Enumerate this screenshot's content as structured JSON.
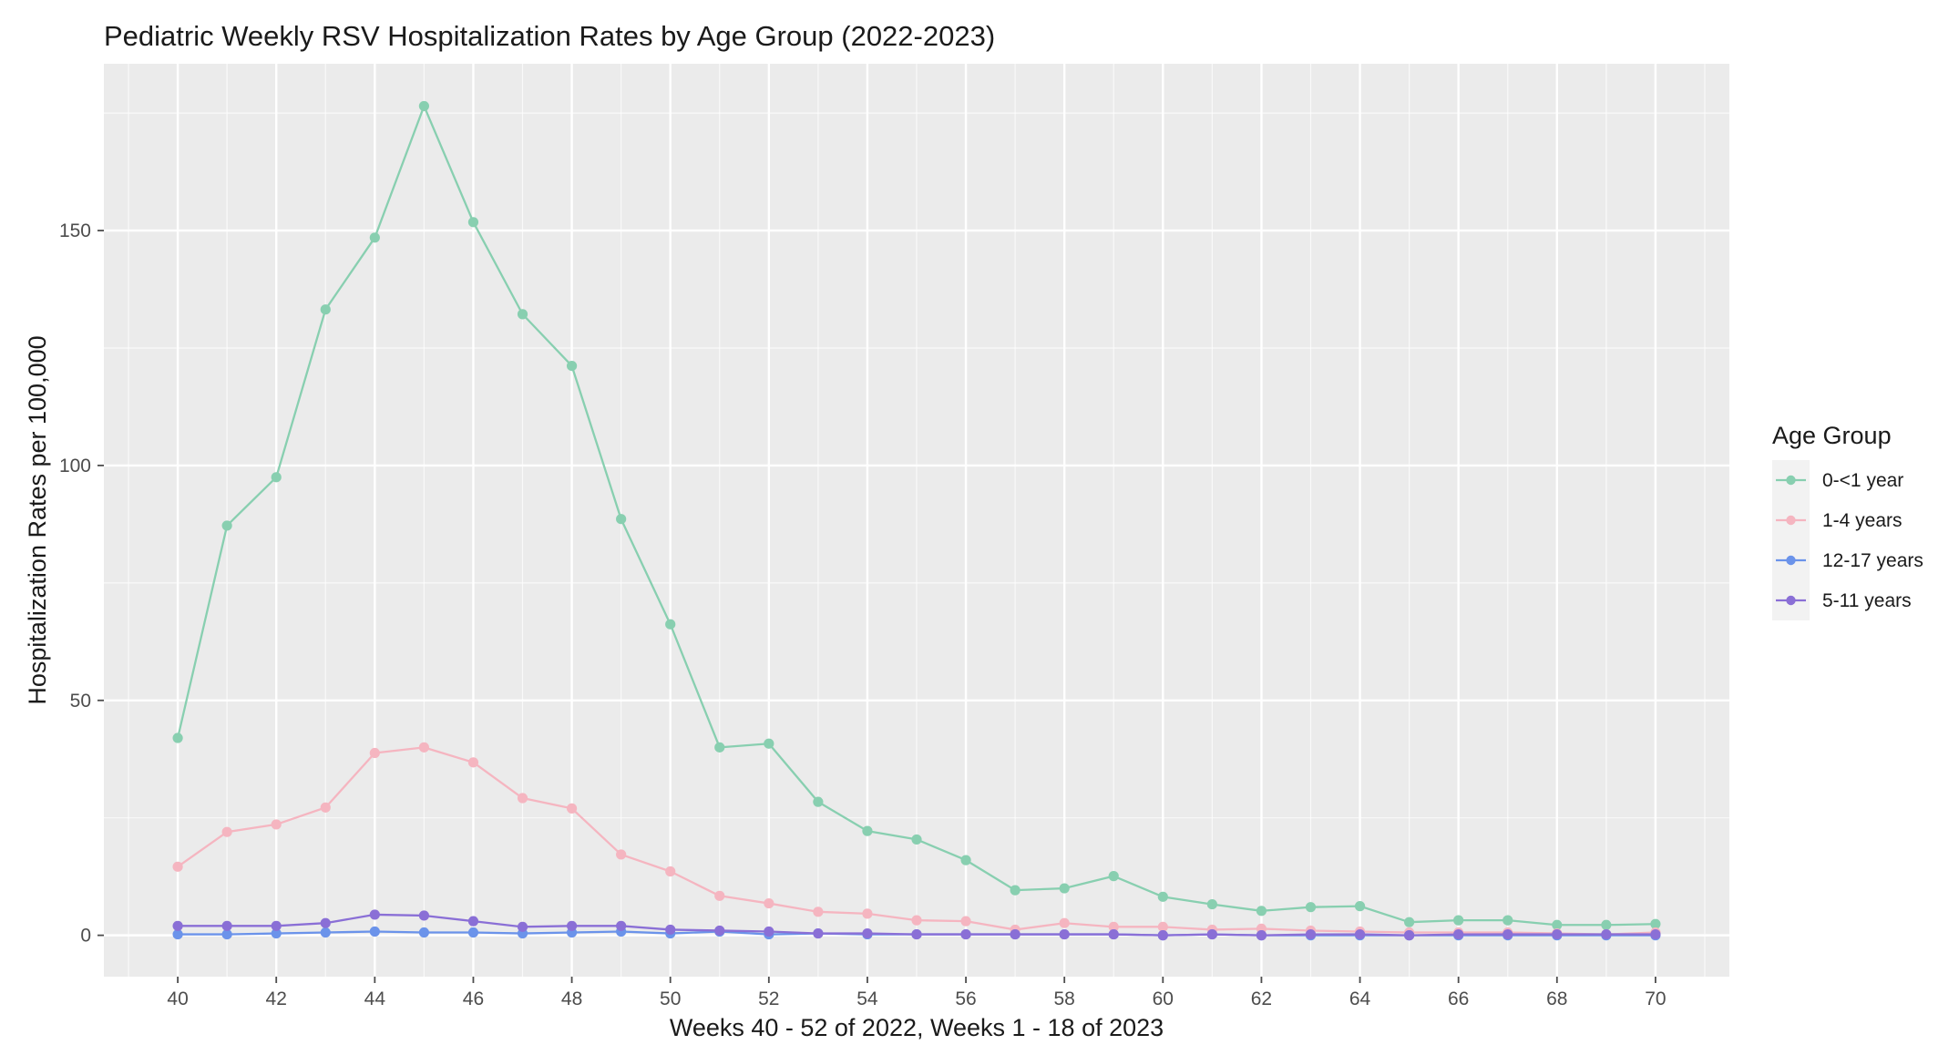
{
  "chart_data": {
    "type": "line",
    "title": "Pediatric Weekly RSV Hospitalization Rates by Age Group (2022-2023)",
    "xlabel": "Weeks 40 - 52 of 2022, Weeks 1 - 18 of 2023",
    "ylabel": "Hospitalization Rates per 100,000",
    "x": [
      40,
      41,
      42,
      43,
      44,
      45,
      46,
      47,
      48,
      49,
      50,
      51,
      52,
      53,
      54,
      55,
      56,
      57,
      58,
      59,
      60,
      61,
      62,
      63,
      64,
      65,
      66,
      67,
      68,
      69,
      70
    ],
    "x_ticks": [
      "40",
      "42",
      "44",
      "46",
      "48",
      "50",
      "52",
      "54",
      "56",
      "58",
      "60",
      "62",
      "64",
      "66",
      "68",
      "70"
    ],
    "y_ticks": [
      "0",
      "50",
      "100",
      "150"
    ],
    "xlim": [
      38.5,
      71.5
    ],
    "ylim": [
      -8.8,
      185.5
    ],
    "grid": true,
    "legend": {
      "title": "Age Group",
      "position": "right"
    },
    "series": [
      {
        "name": "0-<1 year",
        "color": "#88cfb0",
        "values": [
          42.0,
          87.2,
          97.5,
          133.2,
          148.5,
          176.5,
          151.8,
          132.2,
          121.2,
          88.6,
          66.2,
          40.0,
          40.8,
          28.4,
          22.2,
          20.4,
          16.0,
          9.6,
          10.0,
          12.6,
          8.2,
          6.6,
          5.2,
          6.0,
          6.2,
          2.8,
          3.2,
          3.2,
          2.2,
          2.2,
          2.4
        ]
      },
      {
        "name": "1-4 years",
        "color": "#f5b5c0",
        "values": [
          14.6,
          22.0,
          23.6,
          27.2,
          38.8,
          40.0,
          36.8,
          29.2,
          27.0,
          17.2,
          13.6,
          8.4,
          6.8,
          5.0,
          4.6,
          3.2,
          3.0,
          1.2,
          2.6,
          1.8,
          1.8,
          1.2,
          1.4,
          1.0,
          0.8,
          0.6,
          0.6,
          0.6,
          0.4,
          0.2,
          0.6
        ]
      },
      {
        "name": "12-17 years",
        "color": "#6b93ea",
        "values": [
          0.2,
          0.2,
          0.4,
          0.6,
          0.8,
          0.6,
          0.6,
          0.4,
          0.6,
          0.8,
          0.4,
          0.8,
          0.2,
          0.4,
          0.2,
          0.2,
          0.2,
          0.2,
          0.2,
          0.2,
          0.0,
          0.2,
          0.0,
          0.0,
          0.0,
          0.0,
          0.0,
          0.0,
          0.0,
          0.0,
          0.0
        ]
      },
      {
        "name": "5-11 years",
        "color": "#8a6fd6",
        "values": [
          2.0,
          2.0,
          2.0,
          2.6,
          4.4,
          4.2,
          3.0,
          1.8,
          2.0,
          2.0,
          1.2,
          1.0,
          0.8,
          0.4,
          0.4,
          0.2,
          0.2,
          0.2,
          0.2,
          0.2,
          0.0,
          0.2,
          0.0,
          0.2,
          0.2,
          0.0,
          0.2,
          0.2,
          0.2,
          0.2,
          0.2
        ]
      }
    ]
  }
}
